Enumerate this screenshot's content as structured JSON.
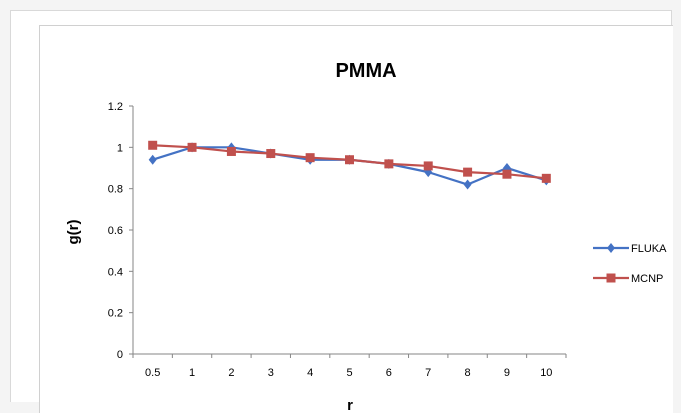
{
  "chart_data": {
    "type": "line",
    "title": "PMMA",
    "xlabel": "r",
    "ylabel": "g(r)",
    "categories": [
      "0.5",
      "1",
      "2",
      "3",
      "4",
      "5",
      "6",
      "7",
      "8",
      "9",
      "10"
    ],
    "ylim": [
      0,
      1.2
    ],
    "yticks": [
      "0",
      "0.2",
      "0.4",
      "0.6",
      "0.8",
      "1",
      "1.2"
    ],
    "grid": false,
    "legend_position": "right",
    "series": [
      {
        "name": "FLUKA",
        "color": "#4472c4",
        "marker": "diamond",
        "values": [
          0.94,
          1.0,
          1.0,
          0.97,
          0.94,
          0.94,
          0.92,
          0.88,
          0.82,
          0.9,
          0.84
        ]
      },
      {
        "name": "MCNP",
        "color": "#c0504d",
        "marker": "square",
        "values": [
          1.01,
          1.0,
          0.98,
          0.97,
          0.95,
          0.94,
          0.92,
          0.91,
          0.88,
          0.87,
          0.85
        ]
      }
    ]
  }
}
